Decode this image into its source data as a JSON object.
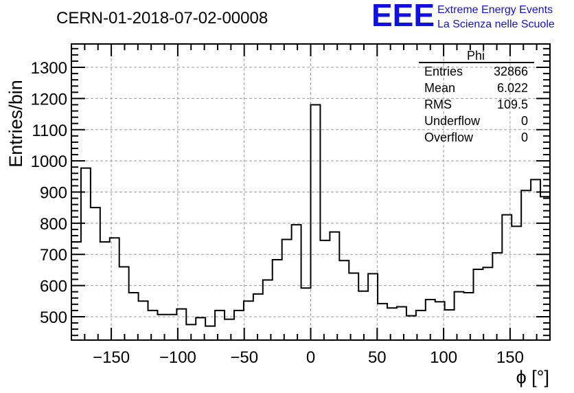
{
  "title": "CERN-01-2018-07-02-00008",
  "logo": {
    "mark": "EEE",
    "line1": "Extreme Energy Events",
    "line2": "La Scienza nelle Scuole",
    "color": "#1010e0"
  },
  "stats": {
    "name": "Phi",
    "rows": [
      {
        "label": "Entries",
        "value": "32866"
      },
      {
        "label": "Mean",
        "value": "6.022"
      },
      {
        "label": "RMS",
        "value": "109.5"
      },
      {
        "label": "Underflow",
        "value": "0"
      },
      {
        "label": "Overflow",
        "value": "0"
      }
    ]
  },
  "chart_data": {
    "type": "bar",
    "style": "step-histogram",
    "xlabel": "ϕ [°]",
    "ylabel": "Entries/bin",
    "xlim": [
      -180,
      180
    ],
    "ylim": [
      425,
      1375
    ],
    "bin_width": 7.2,
    "x_ticks": [
      -150,
      -100,
      -50,
      0,
      50,
      100,
      150
    ],
    "x_tick_labels": [
      "−150",
      "−100",
      "−50",
      "0",
      "50",
      "100",
      "150"
    ],
    "y_ticks": [
      500,
      600,
      700,
      800,
      900,
      1000,
      1100,
      1200,
      1300
    ],
    "grid": true,
    "values": [
      740,
      977,
      850,
      740,
      753,
      660,
      577,
      550,
      520,
      507,
      507,
      525,
      475,
      497,
      470,
      520,
      492,
      520,
      550,
      573,
      618,
      683,
      748,
      795,
      592,
      1180,
      745,
      772,
      680,
      640,
      582,
      638,
      542,
      528,
      532,
      503,
      520,
      555,
      548,
      522,
      580,
      577,
      652,
      658,
      705,
      827,
      790,
      905,
      940,
      885
    ]
  }
}
